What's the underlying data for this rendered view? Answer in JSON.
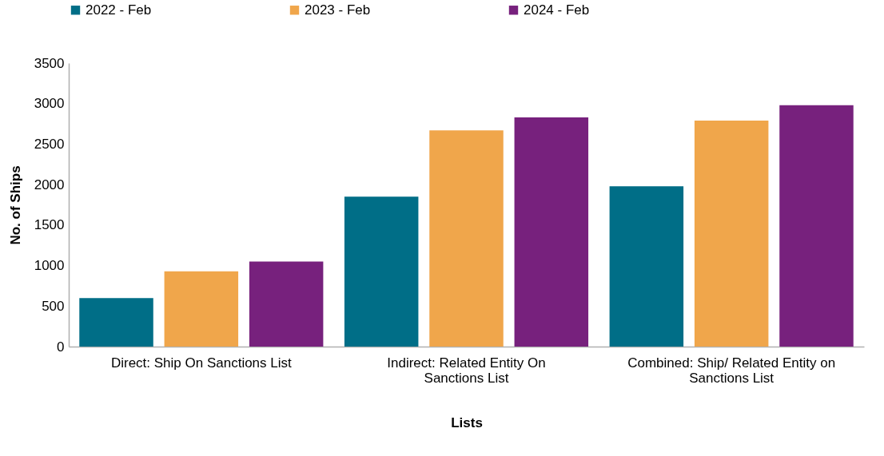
{
  "chart_data": {
    "type": "bar",
    "xlabel": "Lists",
    "ylabel": "No. of Ships",
    "categories": [
      "Direct: Ship On Sanctions List",
      "Indirect: Related Entity On Sanctions List",
      "Combined: Ship/ Related Entity on Sanctions List"
    ],
    "series": [
      {
        "name": "2022 - Feb",
        "color": "#006e87",
        "values": [
          600,
          1850,
          1980
        ]
      },
      {
        "name": "2023 - Feb",
        "color": "#f0a64b",
        "values": [
          930,
          2670,
          2790
        ]
      },
      {
        "name": "2024 - Feb",
        "color": "#77217d",
        "values": [
          1050,
          2830,
          2980
        ]
      }
    ],
    "ylim": [
      0,
      3500
    ],
    "yticks": [
      0,
      500,
      1000,
      1500,
      2000,
      2500,
      3000,
      3500
    ],
    "grid": false,
    "legend": "top"
  }
}
